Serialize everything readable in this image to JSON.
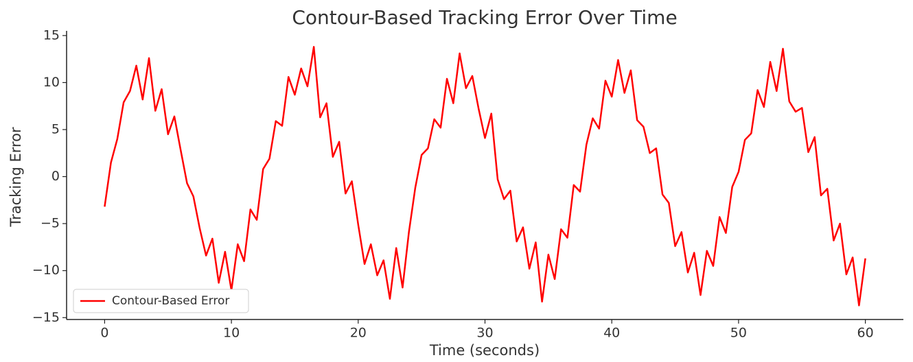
{
  "chart_data": {
    "type": "line",
    "title": "Contour-Based Tracking Error Over Time",
    "x_label": "Time (seconds)",
    "y_label": "Tracking Error",
    "x": [
      0,
      0.5,
      1,
      1.5,
      2,
      2.5,
      3,
      3.5,
      4,
      4.5,
      5,
      5.5,
      6,
      6.5,
      7,
      7.5,
      8,
      8.5,
      9,
      9.5,
      10,
      10.5,
      11,
      11.5,
      12,
      12.5,
      13,
      13.5,
      14,
      14.5,
      15,
      15.5,
      16,
      16.5,
      17,
      17.5,
      18,
      18.5,
      19,
      19.5,
      20,
      20.5,
      21,
      21.5,
      22,
      22.5,
      23,
      23.5,
      24,
      24.5,
      25,
      25.5,
      26,
      26.5,
      27,
      27.5,
      28,
      28.5,
      29,
      29.5,
      30,
      30.5,
      31,
      31.5,
      32,
      32.5,
      33,
      33.5,
      34,
      34.5,
      35,
      35.5,
      36,
      36.5,
      37,
      37.5,
      38,
      38.5,
      39,
      39.5,
      40,
      40.5,
      41,
      41.5,
      42,
      42.5,
      43,
      43.5,
      44,
      44.5,
      45,
      45.5,
      46,
      46.5,
      47,
      47.5,
      48,
      48.5,
      49,
      49.5,
      50,
      50.5,
      51,
      51.5,
      52,
      52.5,
      53,
      53.5,
      54,
      54.5,
      55,
      55.5,
      56,
      56.5,
      57,
      57.5,
      58,
      58.5,
      59,
      59.5,
      60
    ],
    "series": [
      {
        "name": "Contour-Based Error",
        "color": "#ff0000",
        "values": [
          -3.2,
          1.5,
          4.0,
          7.9,
          9.1,
          11.8,
          8.2,
          12.6,
          7.0,
          9.3,
          4.5,
          6.4,
          2.8,
          -0.7,
          -2.1,
          -5.5,
          -8.4,
          -6.6,
          -11.3,
          -8.0,
          -12.1,
          -7.2,
          -9.0,
          -3.5,
          -4.6,
          0.8,
          1.9,
          5.9,
          5.4,
          10.6,
          8.7,
          11.5,
          9.6,
          13.8,
          6.3,
          7.8,
          2.1,
          3.7,
          -1.8,
          -0.5,
          -5.1,
          -9.3,
          -7.2,
          -10.5,
          -8.9,
          -13.0,
          -7.6,
          -11.8,
          -5.9,
          -1.2,
          2.3,
          3.0,
          6.1,
          5.2,
          10.4,
          7.8,
          13.1,
          9.4,
          10.7,
          7.2,
          4.1,
          6.7,
          -0.3,
          -2.4,
          -1.5,
          -6.9,
          -5.4,
          -9.8,
          -7.0,
          -13.3,
          -8.3,
          -10.9,
          -5.6,
          -6.5,
          -0.9,
          -1.6,
          3.4,
          6.2,
          5.1,
          10.2,
          8.5,
          12.4,
          8.9,
          11.3,
          6.0,
          5.3,
          2.5,
          3.0,
          -1.9,
          -2.8,
          -7.4,
          -5.9,
          -10.2,
          -8.1,
          -12.6,
          -7.9,
          -9.5,
          -4.3,
          -6.0,
          -1.1,
          0.5,
          3.9,
          4.6,
          9.2,
          7.4,
          12.2,
          9.1,
          13.6,
          8.0,
          6.9,
          7.3,
          2.6,
          4.2,
          -2.0,
          -1.3,
          -6.8,
          -5.0,
          -10.4,
          -8.6,
          -13.7,
          -8.7
        ]
      }
    ],
    "xlim": [
      -3,
      63
    ],
    "ylim": [
      -15.2,
      15.5
    ],
    "xticks": [
      0,
      10,
      20,
      30,
      40,
      50,
      60
    ],
    "yticks": [
      {
        "value": -15,
        "label": "−15"
      },
      {
        "value": -10,
        "label": "−10"
      },
      {
        "value": -5,
        "label": "−5"
      },
      0,
      5,
      10,
      15
    ],
    "legend": "lower left",
    "grid": false
  }
}
